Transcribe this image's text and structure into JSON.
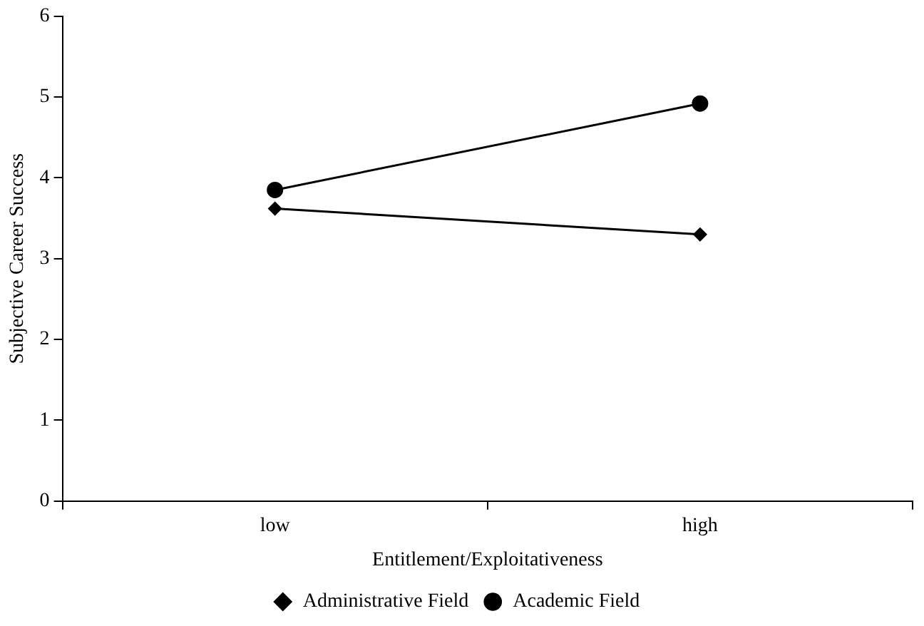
{
  "chart_data": {
    "type": "line",
    "xlabel": "Entitlement/Exploitativeness",
    "ylabel": "Subjective Career Success",
    "categories": [
      "low",
      "high"
    ],
    "series": [
      {
        "name": "Administrative Field",
        "color": "#000000",
        "marker": "diamond",
        "values": [
          3.62,
          3.3
        ]
      },
      {
        "name": "Academic Field",
        "color": "#000000",
        "marker": "circle",
        "values": [
          3.85,
          4.92
        ]
      }
    ],
    "ylim": [
      0,
      6
    ],
    "yticks": [
      0,
      1,
      2,
      3,
      4,
      5,
      6
    ],
    "grid": false,
    "legend": "bottom"
  }
}
